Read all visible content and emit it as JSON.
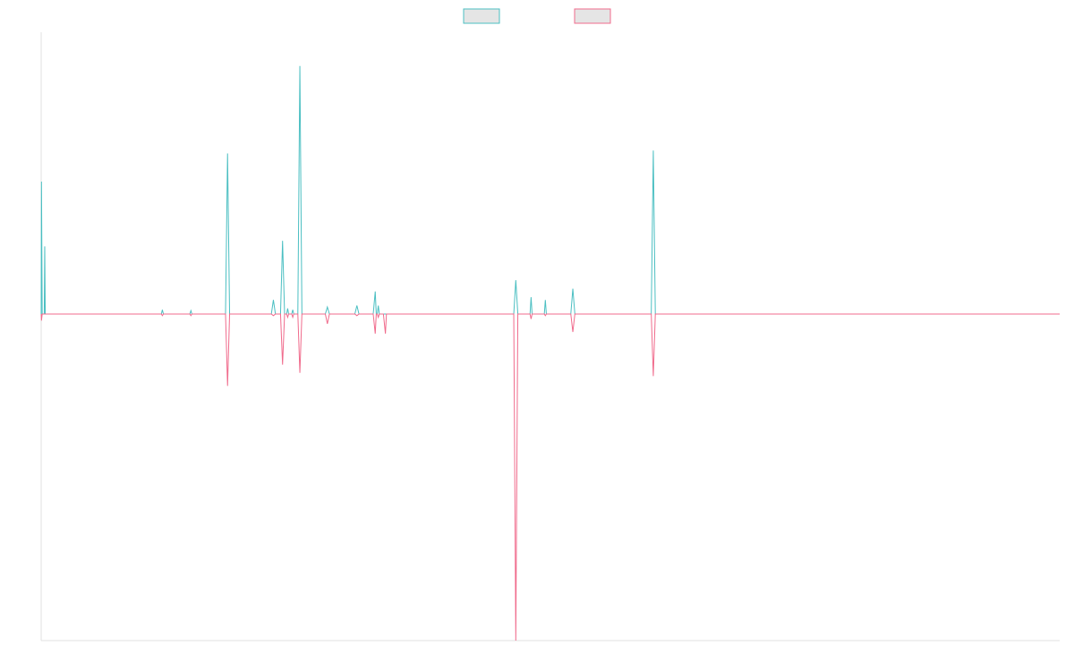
{
  "chart_data": {
    "type": "line",
    "title": "",
    "xlabel": "",
    "ylabel": "",
    "grid": false,
    "legend_position": "top-center",
    "x_range": [
      0,
      1000
    ],
    "ylim": [
      -100,
      100
    ],
    "series": [
      {
        "name": "",
        "color": "#4bbfc2",
        "fill": "#e5e5e5",
        "points": [
          [
            0,
            0
          ],
          [
            0.3,
            47
          ],
          [
            1,
            0
          ],
          [
            3,
            0
          ],
          [
            3.5,
            24
          ],
          [
            4,
            0
          ],
          [
            90,
            0
          ],
          [
            118,
            0
          ],
          [
            119,
            1.5
          ],
          [
            120,
            0
          ],
          [
            146,
            0
          ],
          [
            147,
            1.2
          ],
          [
            148,
            0
          ],
          [
            181,
            0
          ],
          [
            183,
            57
          ],
          [
            185,
            0
          ],
          [
            226,
            0
          ],
          [
            228,
            5
          ],
          [
            230,
            0
          ],
          [
            235,
            0
          ],
          [
            237,
            26
          ],
          [
            239,
            0
          ],
          [
            241,
            0
          ],
          [
            242,
            2
          ],
          [
            243,
            0
          ],
          [
            246,
            0
          ],
          [
            247,
            1.5
          ],
          [
            248,
            0
          ],
          [
            252,
            0
          ],
          [
            254,
            88
          ],
          [
            256,
            0
          ],
          [
            279,
            0
          ],
          [
            281,
            2.5
          ],
          [
            283,
            0
          ],
          [
            308,
            0
          ],
          [
            310,
            3
          ],
          [
            312,
            0
          ],
          [
            326,
            0
          ],
          [
            328,
            8
          ],
          [
            329,
            0
          ],
          [
            330,
            0
          ],
          [
            331,
            3
          ],
          [
            332,
            0
          ],
          [
            464,
            0
          ],
          [
            466,
            12
          ],
          [
            468,
            0
          ],
          [
            480,
            0
          ],
          [
            481,
            6
          ],
          [
            482,
            0
          ],
          [
            494,
            0
          ],
          [
            495,
            5
          ],
          [
            496,
            0
          ],
          [
            520,
            0
          ],
          [
            522,
            9
          ],
          [
            524,
            0
          ],
          [
            599,
            0
          ],
          [
            601,
            58
          ],
          [
            603,
            0
          ],
          [
            1000,
            0
          ]
        ]
      },
      {
        "name": "",
        "color": "#f06b8c",
        "fill": "#e5e5e5",
        "points": [
          [
            0,
            0
          ],
          [
            0.3,
            -2
          ],
          [
            1,
            0
          ],
          [
            3,
            0
          ],
          [
            4,
            0
          ],
          [
            90,
            0
          ],
          [
            118,
            0
          ],
          [
            119,
            -0.5
          ],
          [
            120,
            0
          ],
          [
            146,
            0
          ],
          [
            147,
            -0.5
          ],
          [
            148,
            0
          ],
          [
            181,
            0
          ],
          [
            183,
            -22
          ],
          [
            185,
            0
          ],
          [
            226,
            0
          ],
          [
            228,
            -0.5
          ],
          [
            230,
            0
          ],
          [
            235,
            0
          ],
          [
            237,
            -15.5
          ],
          [
            239,
            0
          ],
          [
            241,
            0
          ],
          [
            242,
            -1
          ],
          [
            243,
            0
          ],
          [
            246,
            0
          ],
          [
            247,
            -1
          ],
          [
            248,
            0
          ],
          [
            252,
            0
          ],
          [
            254,
            -18
          ],
          [
            256,
            0
          ],
          [
            279,
            0
          ],
          [
            281,
            -3
          ],
          [
            283,
            0
          ],
          [
            308,
            0
          ],
          [
            310,
            -0.5
          ],
          [
            312,
            0
          ],
          [
            326,
            0
          ],
          [
            328,
            -6
          ],
          [
            329,
            0
          ],
          [
            330,
            0
          ],
          [
            331,
            -1
          ],
          [
            332,
            0
          ],
          [
            336,
            0
          ],
          [
            338,
            -6
          ],
          [
            339,
            0
          ],
          [
            464,
            0
          ],
          [
            466,
            -100
          ],
          [
            468,
            0
          ],
          [
            480,
            0
          ],
          [
            481,
            -1.5
          ],
          [
            482,
            0
          ],
          [
            494,
            0
          ],
          [
            495,
            -0.5
          ],
          [
            496,
            0
          ],
          [
            520,
            0
          ],
          [
            522,
            -5.5
          ],
          [
            524,
            0
          ],
          [
            599,
            0
          ],
          [
            601,
            -19
          ],
          [
            603,
            0
          ],
          [
            1000,
            0
          ]
        ]
      }
    ]
  }
}
